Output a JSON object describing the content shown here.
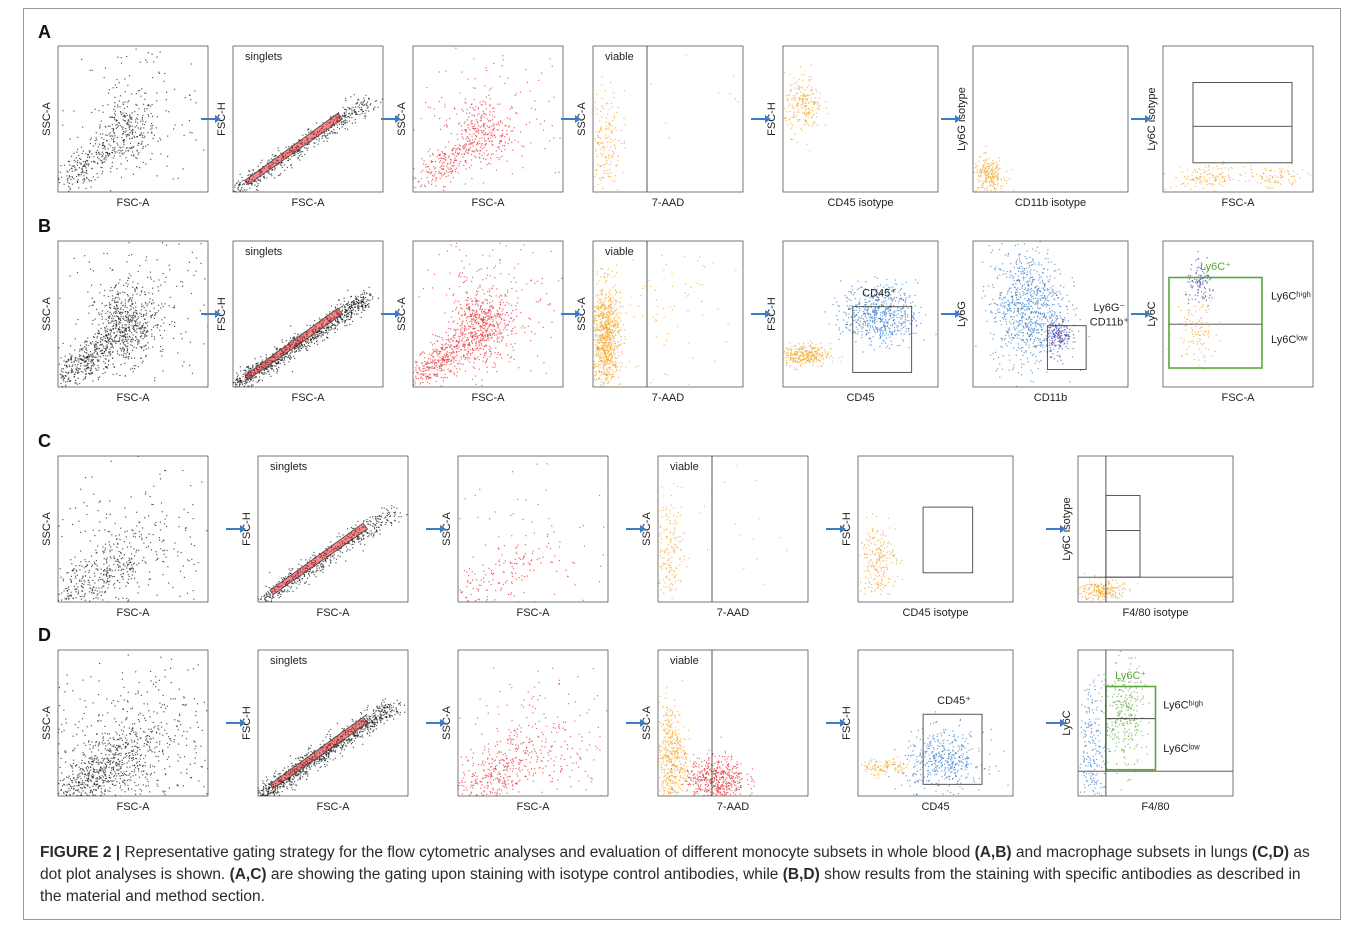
{
  "caption": {
    "label": "FIGURE 2 |",
    "t1": "Representative gating strategy for the flow cytometric analyses and evaluation of different monocyte subsets in whole blood",
    "r1": "(A,B)",
    "t2": "and macrophage subsets in lungs",
    "r2": "(C,D)",
    "t3": "as dot plot analyses is shown.",
    "r3": "(A,C)",
    "t4": "are showing the gating upon staining with isotype control antibodies, while",
    "r4": "(B,D)",
    "t5": "show results from the staining with specific antibodies as described in the material and method section."
  },
  "colors": {
    "black_events": "#141414",
    "red_events": "#e8262b",
    "orange_events": "#f4a21f",
    "blue_events": "#2f76c8",
    "purple_events": "#3b3ba0",
    "green_gate": "#5aa83c",
    "arrow": "#3d7cc9"
  },
  "rows": [
    {
      "label": "A",
      "panels": [
        {
          "x": "FSC-A",
          "y": "SSC-A",
          "color": "black",
          "pattern": "fsc_ssc",
          "density": "medium"
        },
        {
          "x": "FSC-A",
          "y": "FSC-H",
          "color": "black",
          "pattern": "singlets",
          "density": "medium",
          "labels": [
            "singlets"
          ]
        },
        {
          "x": "FSC-A",
          "y": "SSC-A",
          "color": "red",
          "pattern": "fsc_ssc",
          "density": "medium"
        },
        {
          "x": "7-AAD",
          "y": "SSC-A",
          "color": "orange",
          "pattern": "viable",
          "density": "low",
          "labels": [
            "viable"
          ]
        },
        {
          "x": "CD45 isotype",
          "y": "FSC-H",
          "color": "orange",
          "pattern": "cd45_iso",
          "density": "low"
        },
        {
          "x": "CD11b isotype",
          "y": "Ly6G isotype",
          "color": "orange",
          "pattern": "corner",
          "density": "low"
        },
        {
          "x": "FSC-A",
          "y": "Ly6C isotype",
          "color": "orange",
          "pattern": "ly6c_iso",
          "density": "low"
        }
      ]
    },
    {
      "label": "B",
      "panels": [
        {
          "x": "FSC-A",
          "y": "SSC-A",
          "color": "black",
          "pattern": "fsc_ssc",
          "density": "high"
        },
        {
          "x": "FSC-A",
          "y": "FSC-H",
          "color": "black",
          "pattern": "singlets",
          "density": "high",
          "labels": [
            "singlets"
          ]
        },
        {
          "x": "FSC-A",
          "y": "SSC-A",
          "color": "red",
          "pattern": "fsc_ssc",
          "density": "high"
        },
        {
          "x": "7-AAD",
          "y": "SSC-A",
          "color": "orange",
          "pattern": "viable",
          "density": "high",
          "labels": [
            "viable"
          ]
        },
        {
          "x": "CD45",
          "y": "FSC-H",
          "color": "blue",
          "pattern": "cd45_pos",
          "density": "high",
          "labels": [
            "CD45⁺"
          ]
        },
        {
          "x": "CD11b",
          "y": "Ly6G",
          "color": "blue",
          "pattern": "ly6g_cd11b",
          "density": "high",
          "labels": [
            "Ly6G⁻",
            "CD11b⁺"
          ]
        },
        {
          "x": "FSC-A",
          "y": "Ly6C",
          "color": "purple",
          "pattern": "ly6c_pos",
          "density": "low",
          "labels": [
            "Ly6C⁺",
            "Ly6Cʰⁱᵍʰ",
            "Ly6Cˡᵒʷ"
          ]
        }
      ]
    },
    {
      "label": "C",
      "panels": [
        {
          "x": "FSC-A",
          "y": "SSC-A",
          "color": "black",
          "pattern": "lung_fsc",
          "density": "medium"
        },
        {
          "x": "FSC-A",
          "y": "FSC-H",
          "color": "black",
          "pattern": "singlets",
          "density": "medium",
          "labels": [
            "singlets"
          ]
        },
        {
          "x": "FSC-A",
          "y": "SSC-A",
          "color": "red",
          "pattern": "lung_fsc",
          "density": "low"
        },
        {
          "x": "7-AAD",
          "y": "SSC-A",
          "color": "orange",
          "pattern": "viable",
          "density": "low",
          "labels": [
            "viable"
          ]
        },
        {
          "x": "CD45 isotype",
          "y": "FSC-H",
          "color": "orange",
          "pattern": "cd45_iso_lung",
          "density": "low"
        },
        {
          "x": "F4/80 isotype",
          "y": "Ly6C isotype",
          "color": "orange",
          "pattern": "f480_iso",
          "density": "low"
        }
      ]
    },
    {
      "label": "D",
      "panels": [
        {
          "x": "FSC-A",
          "y": "SSC-A",
          "color": "black",
          "pattern": "lung_fsc",
          "density": "high"
        },
        {
          "x": "FSC-A",
          "y": "FSC-H",
          "color": "black",
          "pattern": "singlets",
          "density": "high",
          "labels": [
            "singlets"
          ]
        },
        {
          "x": "FSC-A",
          "y": "SSC-A",
          "color": "red",
          "pattern": "lung_fsc",
          "density": "medium"
        },
        {
          "x": "7-AAD",
          "y": "SSC-A",
          "color": "orange",
          "pattern": "viable_dead",
          "density": "high",
          "labels": [
            "viable"
          ]
        },
        {
          "x": "CD45",
          "y": "FSC-H",
          "color": "blue",
          "pattern": "cd45_pos_lung",
          "density": "medium",
          "labels": [
            "CD45⁺"
          ]
        },
        {
          "x": "F4/80",
          "y": "Ly6C",
          "color": "blue",
          "pattern": "f480_pos",
          "density": "medium",
          "labels": [
            "Ly6C⁺",
            "Ly6Cʰⁱᵍʰ",
            "Ly6Cˡᵒʷ"
          ]
        }
      ]
    }
  ]
}
